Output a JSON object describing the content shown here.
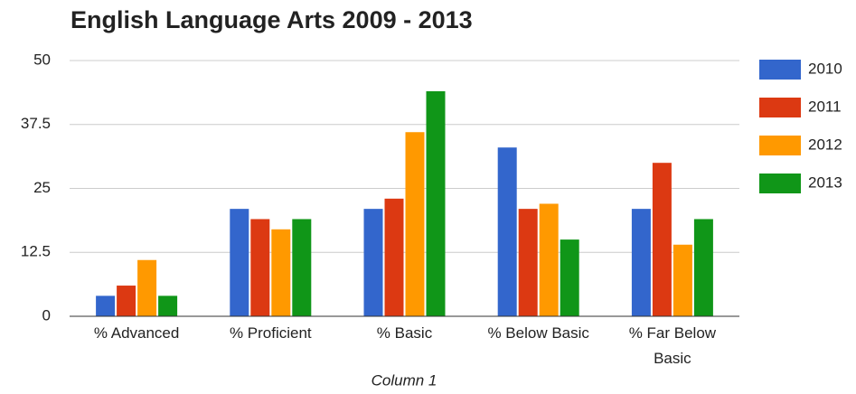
{
  "chart_data": {
    "type": "bar",
    "title": "English Language Arts 2009 - 2013",
    "x_label": "Column 1",
    "categories": [
      "% Advanced",
      "% Proficient",
      "% Basic",
      "% Below Basic",
      "% Far Below Basic"
    ],
    "series": [
      {
        "name": "2010",
        "color": "#3366cc",
        "values": [
          4,
          21,
          21,
          33,
          21
        ]
      },
      {
        "name": "2011",
        "color": "#dc3912",
        "values": [
          6,
          19,
          23,
          21,
          30
        ]
      },
      {
        "name": "2012",
        "color": "#ff9900",
        "values": [
          11,
          17,
          36,
          22,
          14
        ]
      },
      {
        "name": "2013",
        "color": "#109618",
        "values": [
          4,
          19,
          44,
          15,
          19
        ]
      }
    ],
    "ylim": [
      0,
      50
    ],
    "yticks": [
      0,
      12.5,
      25,
      37.5,
      50
    ],
    "grid": true,
    "legend": "right"
  }
}
